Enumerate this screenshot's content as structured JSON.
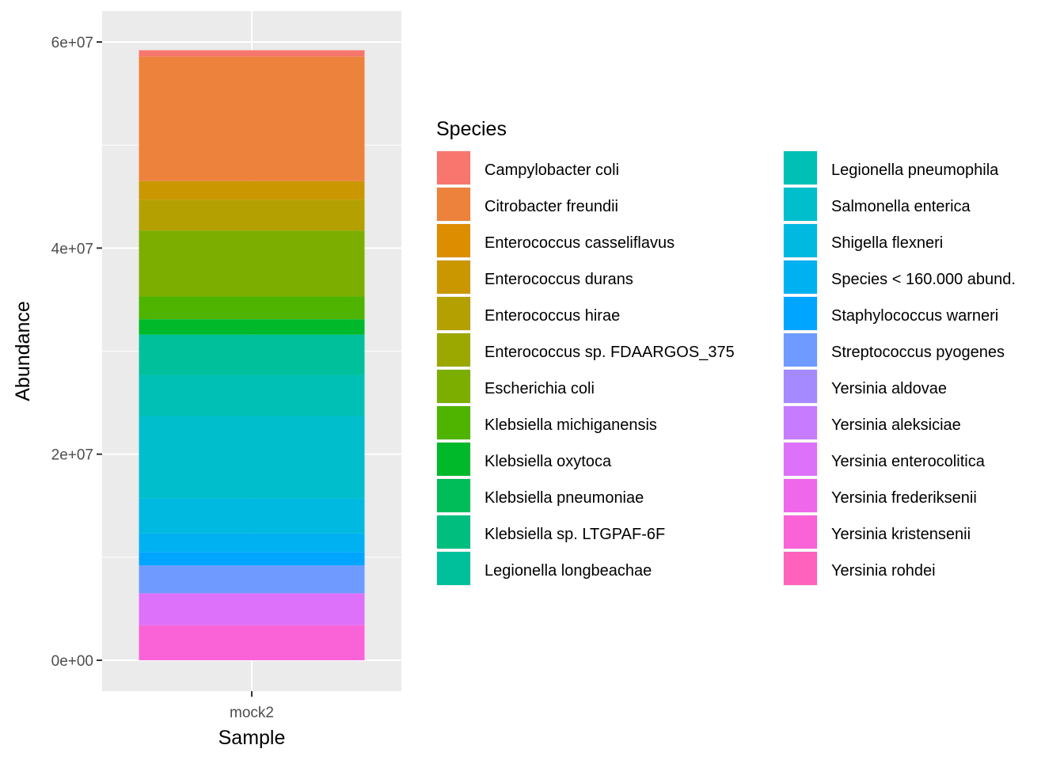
{
  "chart_data": {
    "type": "bar",
    "stacked": true,
    "xlabel": "Sample",
    "ylabel": "Abundance",
    "categories": [
      "mock2"
    ],
    "ylim": [
      -3000000,
      63000000
    ],
    "y_ticks": [
      0,
      20000000,
      40000000,
      60000000
    ],
    "y_tick_labels": [
      "0e+00",
      "2e+07",
      "4e+07",
      "6e+07"
    ],
    "grid": true,
    "legend": {
      "title": "Species",
      "position": "right",
      "columns": 2
    },
    "series": [
      {
        "name": "Campylobacter coli",
        "color": "#F8766D",
        "values": [
          600000
        ]
      },
      {
        "name": "Citrobacter freundii",
        "color": "#EC823C",
        "values": [
          12100000
        ]
      },
      {
        "name": "Enterococcus casseliflavus",
        "color": "#DD8D00",
        "values": [
          0
        ]
      },
      {
        "name": "Enterococcus durans",
        "color": "#CA9700",
        "values": [
          1800000
        ]
      },
      {
        "name": "Enterococcus hirae",
        "color": "#B4A000",
        "values": [
          3000000
        ]
      },
      {
        "name": "Enterococcus sp. FDAARGOS_375",
        "color": "#9BA800",
        "values": [
          0
        ]
      },
      {
        "name": "Escherichia coli",
        "color": "#7CAE00",
        "values": [
          6400000
        ]
      },
      {
        "name": "Klebsiella michiganensis",
        "color": "#4EB400",
        "values": [
          2200000
        ]
      },
      {
        "name": "Klebsiella oxytoca",
        "color": "#00B92A",
        "values": [
          1500000
        ]
      },
      {
        "name": "Klebsiella pneumoniae",
        "color": "#00BC59",
        "values": [
          0
        ]
      },
      {
        "name": "Klebsiella sp. LTGPAF-6F",
        "color": "#00BE7D",
        "values": [
          0
        ]
      },
      {
        "name": "Legionella longbeachae",
        "color": "#00C09B",
        "values": [
          3900000
        ]
      },
      {
        "name": "Legionella pneumophila",
        "color": "#00C0B5",
        "values": [
          4000000
        ]
      },
      {
        "name": "Salmonella enterica",
        "color": "#00BECC",
        "values": [
          8000000
        ]
      },
      {
        "name": "Shigella flexneri",
        "color": "#00B9E0",
        "values": [
          3400000
        ]
      },
      {
        "name": "Species < 160.000 abund.",
        "color": "#00B1F2",
        "values": [
          1800000
        ]
      },
      {
        "name": "Staphylococcus warneri",
        "color": "#00A5FF",
        "values": [
          1300000
        ]
      },
      {
        "name": "Streptococcus pyogenes",
        "color": "#6F9AFF",
        "values": [
          2700000
        ]
      },
      {
        "name": "Yersinia aldovae",
        "color": "#A58AFF",
        "values": [
          0
        ]
      },
      {
        "name": "Yersinia aleksiciae",
        "color": "#C77CFF",
        "values": [
          0
        ]
      },
      {
        "name": "Yersinia enterocolitica",
        "color": "#DE71F9",
        "values": [
          3100000
        ]
      },
      {
        "name": "Yersinia frederiksenii",
        "color": "#EF67EB",
        "values": [
          0
        ]
      },
      {
        "name": "Yersinia kristensenii",
        "color": "#FA62D8",
        "values": [
          3400000
        ]
      },
      {
        "name": "Yersinia rohdei",
        "color": "#FF62BC",
        "values": [
          0
        ]
      }
    ]
  }
}
